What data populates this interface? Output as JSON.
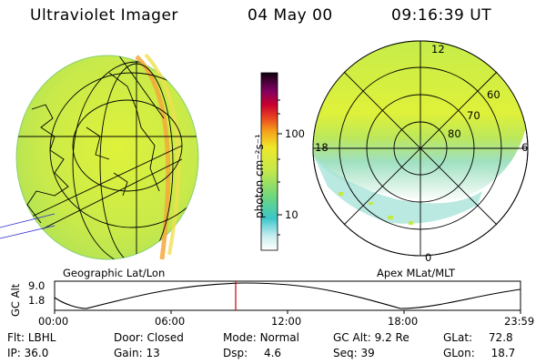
{
  "header": {
    "instrument": "Ultraviolet Imager",
    "date": "04 May 00",
    "time": "09:16:39 UT"
  },
  "colorbar": {
    "unit_label": "photon cm⁻²s⁻¹",
    "ticks": [
      "100",
      "10"
    ]
  },
  "geo_panel": {
    "label": "Geographic Lat/Lon"
  },
  "polar_panel": {
    "label": "Apex MLat/MLT",
    "mlt_labels": [
      "12",
      "18",
      "6",
      "0"
    ],
    "lat_labels": [
      "60",
      "70",
      "80"
    ]
  },
  "altitude_plot": {
    "ylabel": "GC Alt",
    "yticks": [
      "9.0",
      "1.8"
    ],
    "xticks": [
      "00:00",
      "06:00",
      "12:00",
      "18:00",
      "23:59"
    ],
    "marker_time": "09:16:39",
    "marker_color": "#cc0000"
  },
  "footer": {
    "rows": [
      [
        {
          "key": "Flt:",
          "value": "LBHL"
        },
        {
          "key": "Door:",
          "value": "Closed"
        },
        {
          "key": "Mode:",
          "value": "Normal"
        },
        {
          "key": "GC Alt:",
          "value": "9.2 Re"
        },
        {
          "key": "GLat:",
          "value": "72.8"
        }
      ],
      [
        {
          "key": "IP:",
          "value": "36.0"
        },
        {
          "key": "Gain:",
          "value": "13"
        },
        {
          "key": "Dsp:",
          "value": "4.6"
        },
        {
          "key": "Seq:",
          "value": "39"
        },
        {
          "key": "GLon:",
          "value": "18.7"
        }
      ]
    ]
  }
}
